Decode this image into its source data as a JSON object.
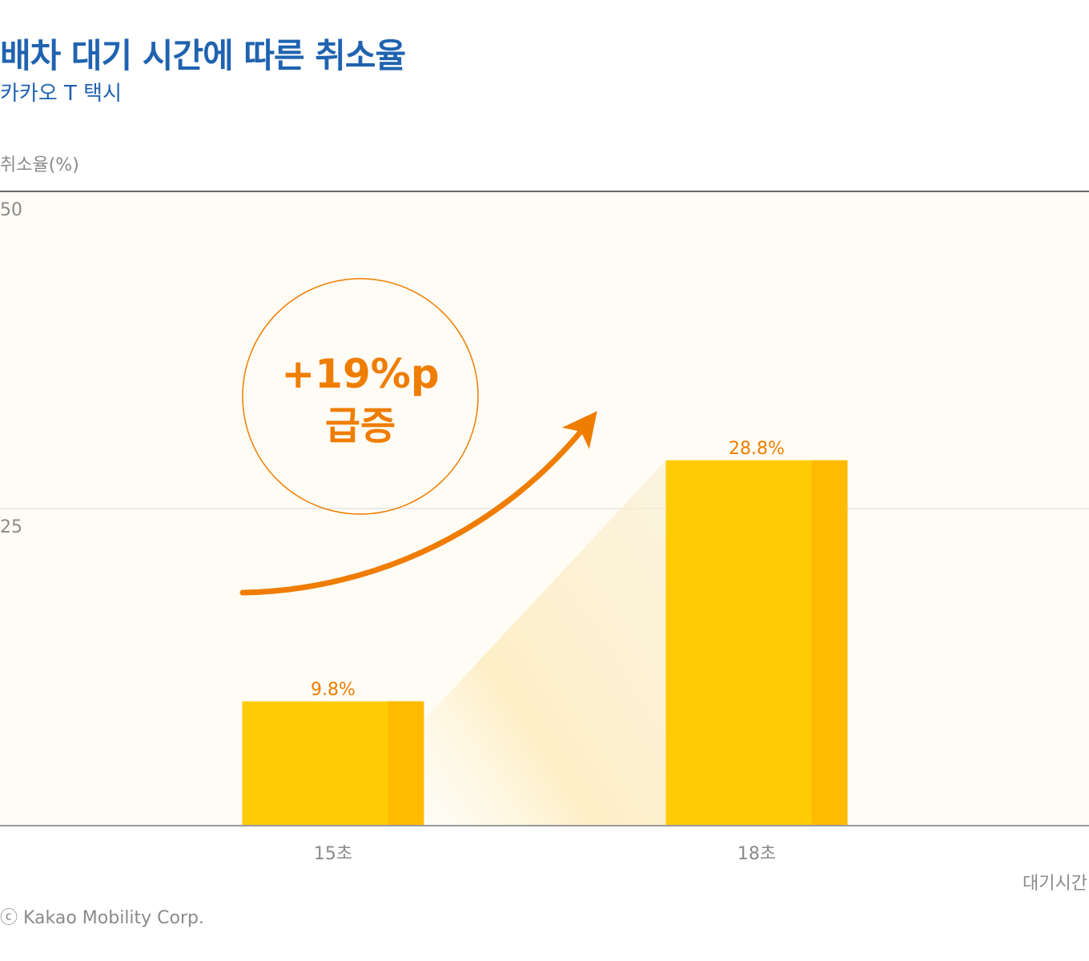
{
  "header": {
    "title": "배차 대기 시간에 따른 취소율",
    "subtitle": "카카오 T 택시"
  },
  "footer": {
    "source": "ⓒ Kakao Mobility Corp."
  },
  "annotation": {
    "line1": "+19%p",
    "line2": "급증"
  },
  "colors": {
    "accent": "#ef7d00",
    "bar_front": "#ffcb05",
    "bar_side": "#ffbb00",
    "title": "#1f63b0",
    "plot_bg": "#fefcf5"
  },
  "chart_data": {
    "type": "bar",
    "title": "배차 대기 시간에 따른 취소율",
    "subtitle": "카카오 T 택시",
    "ylabel": "취소율(%)",
    "xlabel": "대기시간",
    "ylim": [
      0,
      50
    ],
    "yticks": [
      50,
      25
    ],
    "grid": true,
    "categories": [
      "15초",
      "18초"
    ],
    "values": [
      9.8,
      28.8
    ],
    "data_labels": [
      "9.8%",
      "28.8%"
    ]
  }
}
